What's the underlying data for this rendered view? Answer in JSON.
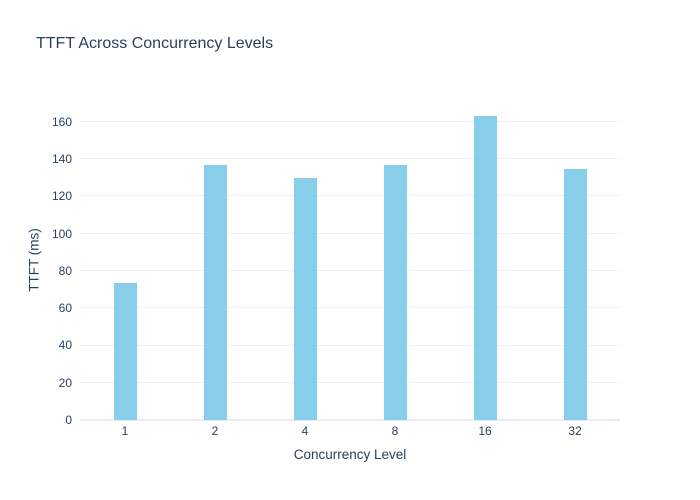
{
  "figure": {
    "background_color": "#ffffff",
    "text_color": "#2a3f5f",
    "gridline_color": "#ebf0f8",
    "zeroline_color": "#e5ecf6"
  },
  "chart_data": {
    "type": "bar",
    "title": "TTFT Across Concurrency Levels",
    "xlabel": "Concurrency Level",
    "ylabel": "TTFT (ms)",
    "categories": [
      "1",
      "2",
      "4",
      "8",
      "16",
      "32"
    ],
    "values": [
      73.7,
      136.9,
      130.1,
      136.9,
      163.2,
      134.5
    ],
    "yticks": [
      0,
      20,
      40,
      60,
      80,
      100,
      120,
      140,
      160
    ],
    "ylim": [
      0,
      171.8
    ],
    "grid": true,
    "legend_position": "none",
    "bar_color": "#87ceeb"
  }
}
